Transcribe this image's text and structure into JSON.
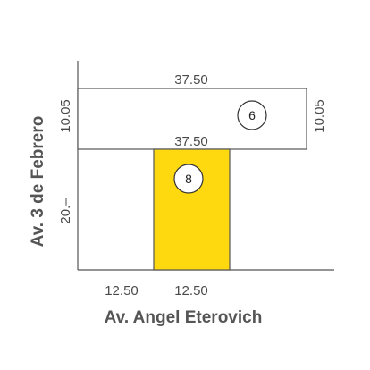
{
  "streets": {
    "left": "Av. 3 de Febrero",
    "bottom": "Av. Angel Eterovich"
  },
  "lots": [
    {
      "number": "6",
      "highlighted": false
    },
    {
      "number": "8",
      "highlighted": true
    }
  ],
  "dimensions": {
    "lot6_top": "37.50",
    "lot6_bottom": "37.50",
    "lot6_left": "10.05",
    "lot6_right": "10.05",
    "left_lower": "20.–",
    "bottom_left": "12.50",
    "bottom_right": "12.50"
  },
  "colors": {
    "highlight_fill": "#FFD90F",
    "line": "#555555"
  }
}
